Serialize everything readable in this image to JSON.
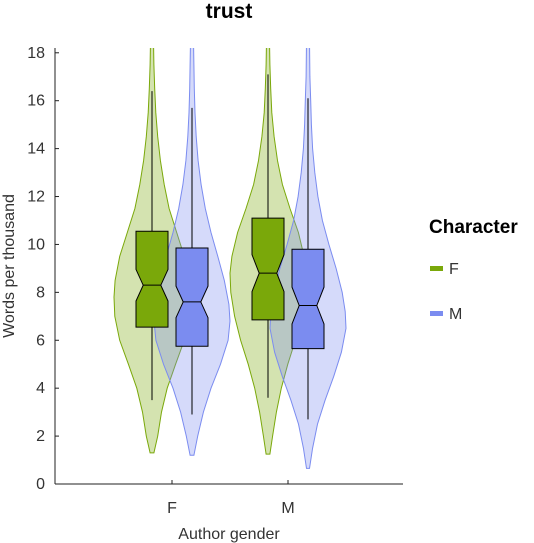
{
  "chart_data": {
    "type": "violin",
    "title": "trust",
    "xlabel": "Author gender",
    "ylabel": "Words per thousand",
    "ylim": [
      0,
      18.2
    ],
    "yticks": [
      0,
      2,
      4,
      6,
      8,
      10,
      12,
      14,
      16,
      18
    ],
    "categories": [
      "F",
      "M"
    ],
    "grid": false,
    "legend": {
      "title": "Character",
      "placement": "right",
      "entries": [
        {
          "label": "F",
          "color": "#7aa80a"
        },
        {
          "label": "M",
          "color": "#7b8cf0"
        }
      ]
    },
    "series": [
      {
        "name": "F",
        "color": "#7aa80a",
        "groups": [
          {
            "category": "F",
            "whisker_low": 3.5,
            "q1": 6.55,
            "median": 8.3,
            "q3": 10.55,
            "whisker_high": 16.4,
            "notch": 0.3,
            "violin_min": 1.3,
            "violin_max": 18.5,
            "density": [
              [
                1.3,
                0.05
              ],
              [
                2.0,
                0.15
              ],
              [
                3.0,
                0.25
              ],
              [
                4.0,
                0.4
              ],
              [
                5.0,
                0.62
              ],
              [
                6.0,
                0.85
              ],
              [
                7.0,
                0.98
              ],
              [
                7.8,
                1.0
              ],
              [
                8.5,
                0.97
              ],
              [
                9.5,
                0.85
              ],
              [
                10.5,
                0.65
              ],
              [
                11.5,
                0.45
              ],
              [
                12.5,
                0.32
              ],
              [
                13.5,
                0.22
              ],
              [
                14.5,
                0.15
              ],
              [
                15.5,
                0.1
              ],
              [
                16.5,
                0.07
              ],
              [
                17.5,
                0.05
              ],
              [
                18.5,
                0.04
              ]
            ]
          },
          {
            "category": "M",
            "whisker_low": 3.6,
            "q1": 6.85,
            "median": 8.8,
            "q3": 11.1,
            "whisker_high": 17.1,
            "notch": 0.35,
            "violin_min": 1.25,
            "violin_max": 18.5,
            "density": [
              [
                1.25,
                0.05
              ],
              [
                2.0,
                0.12
              ],
              [
                3.0,
                0.22
              ],
              [
                4.0,
                0.35
              ],
              [
                5.0,
                0.52
              ],
              [
                6.0,
                0.72
              ],
              [
                7.0,
                0.88
              ],
              [
                8.0,
                0.98
              ],
              [
                8.8,
                1.0
              ],
              [
                9.5,
                0.95
              ],
              [
                10.5,
                0.8
              ],
              [
                11.5,
                0.58
              ],
              [
                12.5,
                0.38
              ],
              [
                13.5,
                0.25
              ],
              [
                14.5,
                0.16
              ],
              [
                15.5,
                0.1
              ],
              [
                16.5,
                0.07
              ],
              [
                17.5,
                0.05
              ],
              [
                18.5,
                0.04
              ]
            ]
          }
        ]
      },
      {
        "name": "M",
        "color": "#7b8cf0",
        "groups": [
          {
            "category": "F",
            "whisker_low": 2.9,
            "q1": 5.75,
            "median": 7.6,
            "q3": 9.85,
            "whisker_high": 15.7,
            "notch": 0.3,
            "violin_min": 1.2,
            "violin_max": 18.5,
            "density": [
              [
                1.2,
                0.05
              ],
              [
                2.0,
                0.15
              ],
              [
                3.0,
                0.3
              ],
              [
                4.0,
                0.5
              ],
              [
                5.0,
                0.75
              ],
              [
                6.0,
                0.95
              ],
              [
                6.8,
                1.0
              ],
              [
                7.5,
                0.97
              ],
              [
                8.5,
                0.85
              ],
              [
                9.5,
                0.68
              ],
              [
                10.5,
                0.5
              ],
              [
                11.5,
                0.35
              ],
              [
                12.5,
                0.24
              ],
              [
                13.5,
                0.16
              ],
              [
                14.5,
                0.11
              ],
              [
                15.5,
                0.08
              ],
              [
                16.5,
                0.06
              ],
              [
                17.5,
                0.05
              ],
              [
                18.5,
                0.04
              ]
            ]
          },
          {
            "category": "M",
            "whisker_low": 2.7,
            "q1": 5.65,
            "median": 7.45,
            "q3": 9.8,
            "whisker_high": 16.1,
            "notch": 0.35,
            "violin_min": 0.65,
            "violin_max": 18.5,
            "density": [
              [
                0.65,
                0.04
              ],
              [
                1.5,
                0.12
              ],
              [
                2.5,
                0.25
              ],
              [
                3.5,
                0.45
              ],
              [
                4.5,
                0.68
              ],
              [
                5.5,
                0.88
              ],
              [
                6.5,
                1.0
              ],
              [
                7.2,
                0.98
              ],
              [
                8.0,
                0.9
              ],
              [
                9.0,
                0.74
              ],
              [
                10.0,
                0.55
              ],
              [
                11.0,
                0.38
              ],
              [
                12.0,
                0.26
              ],
              [
                13.0,
                0.18
              ],
              [
                14.0,
                0.12
              ],
              [
                15.0,
                0.09
              ],
              [
                16.0,
                0.07
              ],
              [
                17.0,
                0.05
              ],
              [
                18.5,
                0.04
              ]
            ]
          }
        ]
      }
    ]
  }
}
